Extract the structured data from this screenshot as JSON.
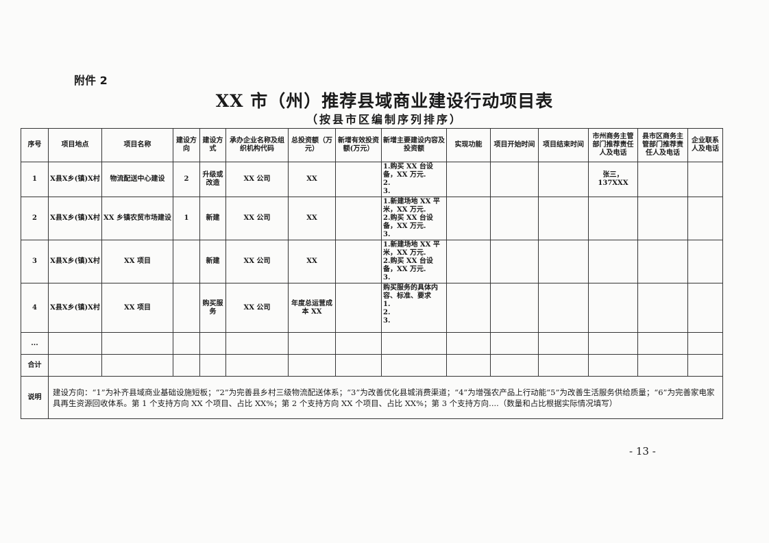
{
  "attachment_label": "附件 2",
  "title": "XX 市（州）推荐县域商业建设行动项目表",
  "subtitle": "（按县市区编制序列排序）",
  "table": {
    "headers": [
      "序号",
      "项目地点",
      "项目名称",
      "建设方向",
      "建设方式",
      "承办企业名称及组织机构代码",
      "总投资额（万元）",
      "新增有效投资额(万元）",
      "新增主要建设内容及投资额",
      "实现功能",
      "项目开始时间",
      "项目结束时间",
      "市州商务主管部门推荐责任人及电话",
      "县市区商务主管部门推荐责任人及电话",
      "企业联系人及电话"
    ],
    "rows": [
      {
        "no": "1",
        "location": "X县X乡(镇)X村",
        "name": "物流配送中心建设",
        "direction": "2",
        "method": "升级或改造",
        "company": "XX 公司",
        "total": "XX",
        "new_invest": "",
        "content": [
          "1.购买 XX 台设备，XX 万元.",
          "2.",
          "3."
        ],
        "function": "",
        "start": "",
        "end": "",
        "city_contact": "张三，137XXX",
        "county_contact": "",
        "company_contact": ""
      },
      {
        "no": "2",
        "location": "X县X乡(镇)X村",
        "name": "XX 乡镇农贸市场建设",
        "direction": "1",
        "method": "新建",
        "company": "XX 公司",
        "total": "XX",
        "new_invest": "",
        "content": [
          "1.新建场地 XX 平米，XX 万元.",
          "2.购买 XX 台设备，XX 万元.",
          "3."
        ],
        "function": "",
        "start": "",
        "end": "",
        "city_contact": "",
        "county_contact": "",
        "company_contact": ""
      },
      {
        "no": "3",
        "location": "X县X乡(镇)X村",
        "name": "XX 项目",
        "direction": "",
        "method": "新建",
        "company": "XX 公司",
        "total": "XX",
        "new_invest": "",
        "content": [
          "1.新建场地 XX 平米，XX 万元.",
          "2.购买 XX 台设备，XX 万元.",
          "3."
        ],
        "function": "",
        "start": "",
        "end": "",
        "city_contact": "",
        "county_contact": "",
        "company_contact": ""
      },
      {
        "no": "4",
        "location": "X县X乡(镇)X村",
        "name": "XX 项目",
        "direction": "",
        "method": "购买服务",
        "company": "XX 公司",
        "total": "年度总运营成本 XX",
        "new_invest": "",
        "content": [
          "购买服务的具体内容、标准、要求",
          "1.",
          "2.",
          "3."
        ],
        "function": "",
        "start": "",
        "end": "",
        "city_contact": "",
        "county_contact": "",
        "company_contact": ""
      }
    ],
    "ellipsis_row_label": "...",
    "total_row_label": "合计",
    "note_label": "说明",
    "note_text": "建设方向：“1”为补齐县域商业基础设施短板；“2”为完善县乡村三级物流配送体系；“3”为改善优化县城消费渠道；“4”为增强农产品上行动能“5”为改善生活服务供给质量；“6”为完善家电家具再生资源回收体系。第 1 个支持方向 XX 个项目、占比 XX%；第 2 个支持方向 XX 个项目、占比 XX%；第 3 个支持方向....（数量和占比根据实际情况填写）"
  },
  "page_number": "- 13 -"
}
